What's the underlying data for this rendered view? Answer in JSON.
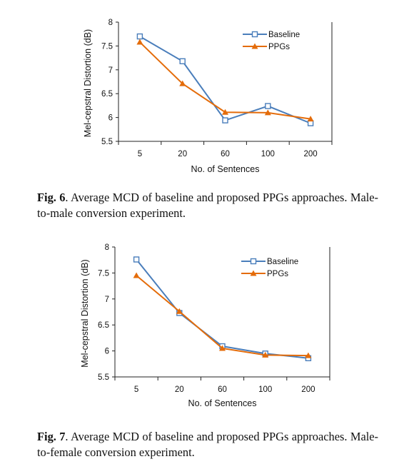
{
  "chart_data": [
    {
      "type": "line",
      "ylabel": "Mel-cepstral Distortion (dB)",
      "xlabel": "No. of Sentences",
      "categories": [
        "5",
        "20",
        "60",
        "100",
        "200"
      ],
      "ylim": [
        5.5,
        8
      ],
      "yticks": [
        "8",
        "7.5",
        "7",
        "6.5",
        "6",
        "5.5"
      ],
      "legend_position": "top-right",
      "series": [
        {
          "name": "Baseline",
          "color": "#4a7ebb",
          "marker": "square-open",
          "values": [
            7.7,
            7.18,
            5.94,
            6.24,
            5.88
          ]
        },
        {
          "name": "PPGs",
          "color": "#e46c0a",
          "marker": "triangle",
          "values": [
            7.58,
            6.71,
            6.11,
            6.1,
            5.97
          ]
        }
      ]
    },
    {
      "type": "line",
      "ylabel": "Mel-cepstral Distortion (dB)",
      "xlabel": "No. of Sentences",
      "categories": [
        "5",
        "20",
        "60",
        "100",
        "200"
      ],
      "ylim": [
        5.5,
        8
      ],
      "yticks": [
        "8",
        "7.5",
        "7",
        "6.5",
        "6",
        "5.5"
      ],
      "legend_position": "top-right",
      "series": [
        {
          "name": "Baseline",
          "color": "#4a7ebb",
          "marker": "square-open",
          "values": [
            7.76,
            6.73,
            6.09,
            5.95,
            5.86
          ]
        },
        {
          "name": "PPGs",
          "color": "#e46c0a",
          "marker": "triangle",
          "values": [
            7.45,
            6.76,
            6.05,
            5.92,
            5.91
          ]
        }
      ]
    }
  ],
  "captions": [
    {
      "label": "Fig. 6",
      "text": ". Average MCD of baseline and proposed PPGs approaches. Male-to-male conversion experiment."
    },
    {
      "label": "Fig. 7",
      "text": ". Average MCD of baseline and proposed PPGs approaches. Male-to-female conversion experiment."
    }
  ]
}
